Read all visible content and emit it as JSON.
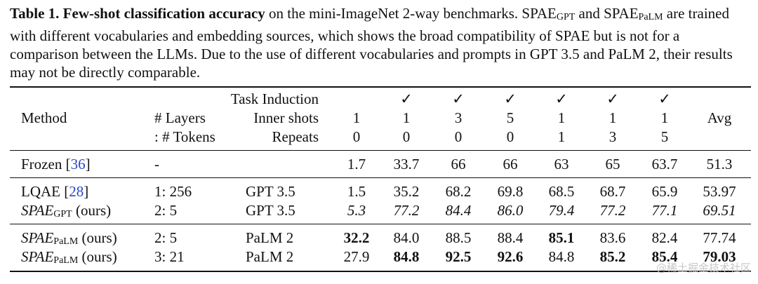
{
  "caption": {
    "label": "Table 1.",
    "bold": "Few-shot classification accuracy",
    "p1": " on the mini-ImageNet 2-way benchmarks. SPAE",
    "sub1": "GPT",
    "p2": " and SPAE",
    "sub2": "PaLM",
    "p3": " are trained with different vocabularies and embedding sources, which shows the broad compatibility of SPAE but is not for a comparison between the LLMs. Due to the use of different vocabularies and prompts in GPT 3.5 and PaLM 2, their results may not be directly comparable."
  },
  "header": {
    "method": "Method",
    "layers": "# Layers",
    "tokens": ": # Tokens",
    "task_induction": "Task Induction",
    "inner_shots": "Inner shots",
    "repeats": "Repeats",
    "avg": "Avg",
    "task_marks": [
      "",
      "✓",
      "✓",
      "✓",
      "✓",
      "✓",
      "✓"
    ],
    "shots": [
      "1",
      "1",
      "3",
      "5",
      "1",
      "1",
      "1"
    ],
    "repeat_vals": [
      "0",
      "0",
      "0",
      "0",
      "1",
      "3",
      "5"
    ]
  },
  "rows": [
    {
      "method": "Frozen [",
      "ref": "36",
      "method_tail": "]",
      "layers": "-",
      "llm": "",
      "vals": [
        "1.7",
        "33.7",
        "66",
        "66",
        "63",
        "65",
        "63.7"
      ],
      "avg": "51.3"
    },
    {
      "method": "LQAE [",
      "ref": "28",
      "method_tail": "]",
      "layers": "1: 256",
      "llm": "GPT 3.5",
      "vals": [
        "1.5",
        "35.2",
        "68.2",
        "69.8",
        "68.5",
        "68.7",
        "65.9"
      ],
      "avg": "53.97"
    },
    {
      "method": "SPAE",
      "sub": "GPT",
      "method_tail": " (ours)",
      "layers": "2: 5",
      "llm": "GPT 3.5",
      "vals": [
        "5.3",
        "77.2",
        "84.4",
        "86.0",
        "79.4",
        "77.2",
        "77.1"
      ],
      "avg": "69.51"
    },
    {
      "method": "SPAE",
      "sub": "PaLM",
      "method_tail": " (ours)",
      "layers": "2: 5",
      "llm": "PaLM 2",
      "vals": [
        "32.2",
        "84.0",
        "88.5",
        "88.4",
        "85.1",
        "83.6",
        "82.4"
      ],
      "avg": "77.74"
    },
    {
      "method": "SPAE",
      "sub": "PaLM",
      "method_tail": " (ours)",
      "layers": "3: 21",
      "llm": "PaLM 2",
      "vals": [
        "27.9",
        "84.8",
        "92.5",
        "92.6",
        "84.8",
        "85.2",
        "85.4"
      ],
      "avg": "79.03"
    }
  ],
  "watermark": "@稀土掘金技术社区"
}
